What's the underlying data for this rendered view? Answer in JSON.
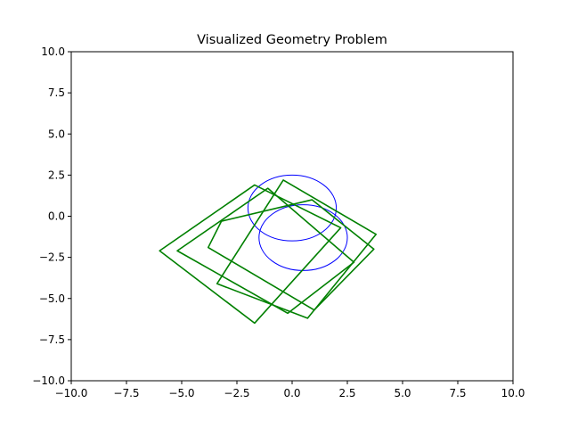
{
  "chart_data": {
    "type": "line",
    "title": "Visualized Geometry Problem",
    "xlabel": "",
    "ylabel": "",
    "xlim": [
      -10,
      10
    ],
    "ylim": [
      -10,
      10
    ],
    "xticks": [
      -10,
      -7.5,
      -5,
      -2.5,
      0,
      2.5,
      5,
      7.5,
      10
    ],
    "yticks": [
      -10,
      -7.5,
      -5,
      -2.5,
      0,
      2.5,
      5,
      7.5,
      10
    ],
    "xtick_labels": [
      "−10.0",
      "−7.5",
      "−5.0",
      "−2.5",
      "0.0",
      "2.5",
      "5.0",
      "7.5",
      "10.0"
    ],
    "ytick_labels": [
      "−10.0",
      "−7.5",
      "−5.0",
      "−2.5",
      "0.0",
      "2.5",
      "5.0",
      "7.5",
      "10.0"
    ],
    "grid": false,
    "legend": "none",
    "circles": [
      {
        "cx": 0.0,
        "cy": 0.5,
        "r": 2.0,
        "color": "#0000ff"
      },
      {
        "cx": 0.5,
        "cy": -1.3,
        "r": 2.0,
        "color": "#0000ff"
      }
    ],
    "polygons": [
      {
        "color": "#008000",
        "points": [
          [
            -1.7,
            1.9
          ],
          [
            2.2,
            -0.7
          ],
          [
            -1.7,
            -6.5
          ],
          [
            -6.0,
            -2.1
          ]
        ]
      },
      {
        "color": "#008000",
        "points": [
          [
            -1.1,
            1.7
          ],
          [
            2.8,
            -2.8
          ],
          [
            -0.2,
            -5.9
          ],
          [
            -5.2,
            -2.1
          ]
        ]
      },
      {
        "color": "#008000",
        "points": [
          [
            -0.4,
            2.2
          ],
          [
            3.8,
            -1.1
          ],
          [
            0.7,
            -6.2
          ],
          [
            -3.4,
            -4.1
          ]
        ]
      },
      {
        "color": "#008000",
        "points": [
          [
            -3.2,
            -0.3
          ],
          [
            0.9,
            1.0
          ],
          [
            3.7,
            -2.0
          ],
          [
            1.0,
            -5.7
          ],
          [
            -3.8,
            -1.9
          ]
        ]
      }
    ]
  }
}
